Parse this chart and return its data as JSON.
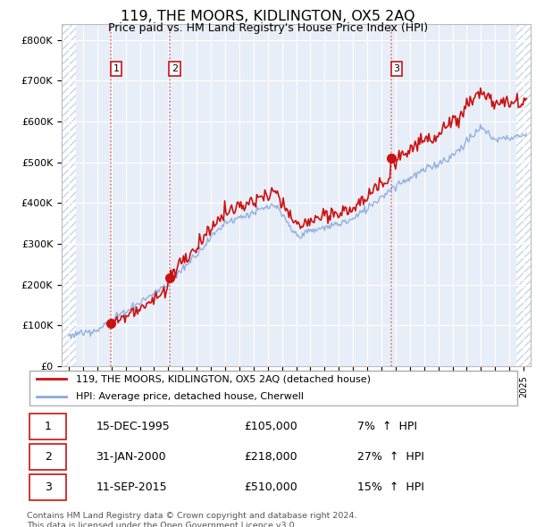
{
  "title": "119, THE MOORS, KIDLINGTON, OX5 2AQ",
  "subtitle": "Price paid vs. HM Land Registry's House Price Index (HPI)",
  "ylim": [
    0,
    840000
  ],
  "yticks": [
    0,
    100000,
    200000,
    300000,
    400000,
    500000,
    600000,
    700000,
    800000
  ],
  "ytick_labels": [
    "£0",
    "£100K",
    "£200K",
    "£300K",
    "£400K",
    "£500K",
    "£600K",
    "£700K",
    "£800K"
  ],
  "hpi_color": "#88aadd",
  "price_color": "#cc1111",
  "vline_color": "#dd4444",
  "plot_bg_color": "#e8eef8",
  "hatch_color": "#c8d4e8",
  "legend_line1": "119, THE MOORS, KIDLINGTON, OX5 2AQ (detached house)",
  "legend_line2": "HPI: Average price, detached house, Cherwell",
  "sales": [
    {
      "num": 1,
      "date_label": "15-DEC-1995",
      "date_x": 1995.96,
      "price": 105000,
      "pct": "7%",
      "dir": "↑"
    },
    {
      "num": 2,
      "date_label": "31-JAN-2000",
      "date_x": 2000.08,
      "price": 218000,
      "pct": "27%",
      "dir": "↑"
    },
    {
      "num": 3,
      "date_label": "11-SEP-2015",
      "date_x": 2015.69,
      "price": 510000,
      "pct": "15%",
      "dir": "↑"
    }
  ],
  "footer": "Contains HM Land Registry data © Crown copyright and database right 2024.\nThis data is licensed under the Open Government Licence v3.0.",
  "xlim_start": 1992.5,
  "xlim_end": 2025.5,
  "hatch_end": 1993.5,
  "hatch_start_right": 2024.5,
  "sale_dates": [
    1995.96,
    2000.08,
    2015.69
  ],
  "sale_prices": [
    105000,
    218000,
    510000
  ]
}
